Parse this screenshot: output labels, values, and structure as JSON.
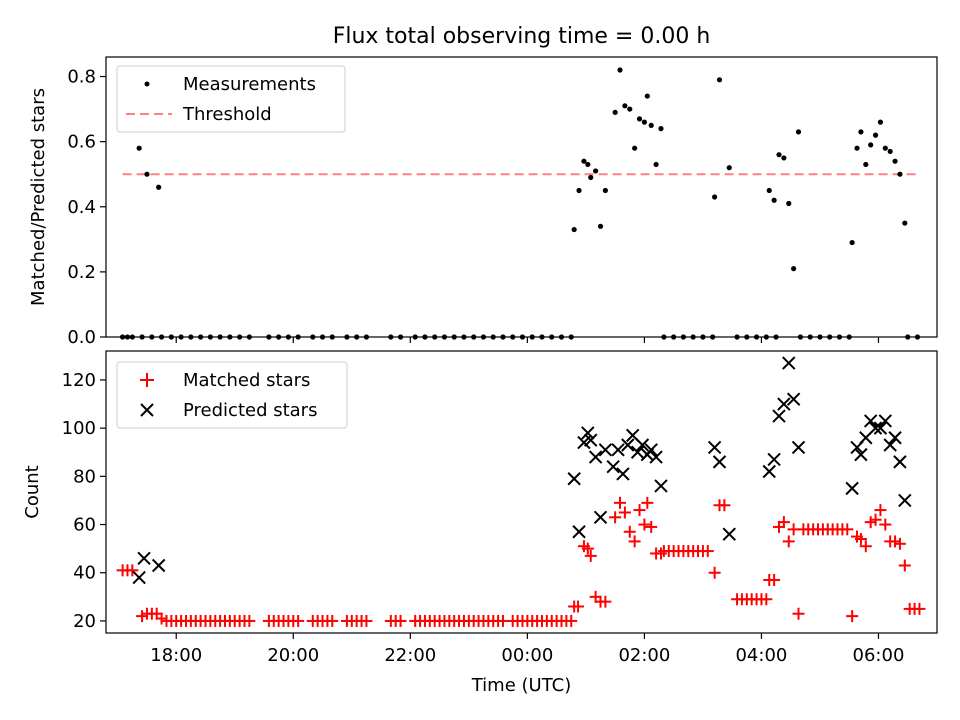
{
  "chart_data": [
    {
      "type": "scatter",
      "title": "Flux total observing time = 0.00 h",
      "xlabel": "",
      "ylabel": "Matched/Predicted stars",
      "xlim": [
        "16:48",
        "07:00"
      ],
      "ylim": [
        0,
        0.86
      ],
      "yticks": [
        0.0,
        0.2,
        0.4,
        0.6,
        0.8
      ],
      "ytick_labels": [
        "0.0",
        "0.2",
        "0.4",
        "0.6",
        "0.8"
      ],
      "legend": {
        "placement": "top-left"
      },
      "series": [
        {
          "name": "Measurements",
          "marker": "dot",
          "color": "#000000",
          "x": [
            "17:05",
            "17:10",
            "17:15",
            "17:25",
            "17:35",
            "17:45",
            "17:55",
            "18:05",
            "18:15",
            "18:25",
            "18:35",
            "18:45",
            "18:55",
            "19:05",
            "19:15",
            "19:35",
            "19:45",
            "19:55",
            "20:05",
            "20:20",
            "20:30",
            "20:40",
            "20:55",
            "21:05",
            "21:15",
            "21:40",
            "21:50",
            "22:05",
            "22:15",
            "22:25",
            "22:35",
            "22:45",
            "22:55",
            "23:05",
            "23:15",
            "23:25",
            "23:35",
            "23:45",
            "23:55",
            "00:05",
            "00:15",
            "00:25",
            "00:35",
            "00:45",
            "02:20",
            "02:30",
            "02:40",
            "02:50",
            "03:00",
            "03:10",
            "03:35",
            "03:45",
            "03:55",
            "04:05",
            "04:15",
            "04:40",
            "04:50",
            "05:00",
            "05:10",
            "05:20",
            "05:30",
            "06:30",
            "06:40",
            "17:22",
            "17:30",
            "17:42",
            "00:48",
            "00:53",
            "00:58",
            "01:02",
            "01:05",
            "01:10",
            "01:15",
            "01:20",
            "01:30",
            "01:35",
            "01:40",
            "01:45",
            "01:50",
            "01:55",
            "02:00",
            "02:03",
            "02:07",
            "02:12",
            "02:17",
            "03:12",
            "03:17",
            "03:27",
            "04:08",
            "04:13",
            "04:18",
            "04:23",
            "04:28",
            "04:33",
            "04:38",
            "05:33",
            "05:38",
            "05:42",
            "05:47",
            "05:52",
            "05:57",
            "06:02",
            "06:07",
            "06:12",
            "06:17",
            "06:22",
            "06:27"
          ],
          "y": [
            0,
            0,
            0,
            0,
            0,
            0,
            0,
            0,
            0,
            0,
            0,
            0,
            0,
            0,
            0,
            0,
            0,
            0,
            0,
            0,
            0,
            0,
            0,
            0,
            0,
            0,
            0,
            0,
            0,
            0,
            0,
            0,
            0,
            0,
            0,
            0,
            0,
            0,
            0,
            0,
            0,
            0,
            0,
            0,
            0,
            0,
            0,
            0,
            0,
            0,
            0,
            0,
            0,
            0,
            0,
            0,
            0,
            0,
            0,
            0,
            0,
            0,
            0,
            0.58,
            0.5,
            0.46,
            0.33,
            0.45,
            0.54,
            0.53,
            0.49,
            0.51,
            0.34,
            0.45,
            0.69,
            0.82,
            0.71,
            0.7,
            0.58,
            0.67,
            0.66,
            0.74,
            0.65,
            0.53,
            0.64,
            0.43,
            0.79,
            0.52,
            0.45,
            0.42,
            0.56,
            0.55,
            0.41,
            0.21,
            0.63,
            0.29,
            0.58,
            0.63,
            0.53,
            0.59,
            0.62,
            0.66,
            0.58,
            0.57,
            0.54,
            0.5,
            0.35
          ]
        },
        {
          "name": "Threshold",
          "line_style": "dashed",
          "color": "#ff8080",
          "x": [
            "17:05",
            "06:40"
          ],
          "y": [
            0.5,
            0.5
          ]
        }
      ]
    },
    {
      "type": "scatter",
      "title": "",
      "xlabel": "Time (UTC)",
      "ylabel": "Count",
      "xlim": [
        "16:48",
        "07:00"
      ],
      "xticks": [
        "18:00",
        "20:00",
        "22:00",
        "00:00",
        "02:00",
        "04:00",
        "06:00"
      ],
      "ylim": [
        15,
        132
      ],
      "yticks": [
        20,
        40,
        60,
        80,
        100,
        120
      ],
      "ytick_labels": [
        "20",
        "40",
        "60",
        "80",
        "100",
        "120"
      ],
      "legend": {
        "placement": "top-left"
      },
      "series": [
        {
          "name": "Matched stars",
          "marker": "plus",
          "color": "#ff0000",
          "x": [
            "17:05",
            "17:10",
            "17:15",
            "17:25",
            "17:30",
            "17:35",
            "17:40",
            "17:45",
            "17:50",
            "17:55",
            "18:00",
            "18:05",
            "18:10",
            "18:15",
            "18:20",
            "18:25",
            "18:30",
            "18:35",
            "18:40",
            "18:45",
            "18:50",
            "18:55",
            "19:00",
            "19:05",
            "19:10",
            "19:15",
            "19:35",
            "19:40",
            "19:45",
            "19:50",
            "19:55",
            "20:00",
            "20:05",
            "20:20",
            "20:25",
            "20:30",
            "20:35",
            "20:40",
            "20:55",
            "21:00",
            "21:05",
            "21:10",
            "21:15",
            "21:40",
            "21:45",
            "21:50",
            "22:05",
            "22:10",
            "22:15",
            "22:20",
            "22:25",
            "22:30",
            "22:35",
            "22:40",
            "22:45",
            "22:50",
            "22:55",
            "23:00",
            "23:05",
            "23:10",
            "23:15",
            "23:20",
            "23:25",
            "23:30",
            "23:35",
            "23:45",
            "23:50",
            "23:55",
            "00:00",
            "00:05",
            "00:10",
            "00:15",
            "00:20",
            "00:25",
            "00:30",
            "00:35",
            "00:40",
            "00:45",
            "00:48",
            "00:52",
            "00:58",
            "01:02",
            "01:05",
            "01:10",
            "01:15",
            "01:20",
            "01:30",
            "01:35",
            "01:40",
            "01:45",
            "01:50",
            "01:55",
            "02:00",
            "02:03",
            "02:07",
            "02:12",
            "02:17",
            "02:20",
            "02:25",
            "02:30",
            "02:35",
            "02:40",
            "02:45",
            "02:50",
            "02:55",
            "03:00",
            "03:05",
            "03:12",
            "03:17",
            "03:22",
            "03:35",
            "03:40",
            "03:45",
            "03:50",
            "03:55",
            "04:00",
            "04:05",
            "04:08",
            "04:13",
            "04:18",
            "04:23",
            "04:28",
            "04:33",
            "04:38",
            "04:43",
            "04:48",
            "04:53",
            "04:58",
            "05:03",
            "05:08",
            "05:13",
            "05:18",
            "05:23",
            "05:28",
            "05:33",
            "05:38",
            "05:42",
            "05:47",
            "05:52",
            "05:57",
            "06:02",
            "06:07",
            "06:12",
            "06:17",
            "06:22",
            "06:27",
            "06:32",
            "06:37",
            "06:42"
          ],
          "y": [
            41,
            41,
            41,
            22,
            23,
            23,
            23,
            21,
            20,
            20,
            20,
            20,
            20,
            20,
            20,
            20,
            20,
            20,
            20,
            20,
            20,
            20,
            20,
            20,
            20,
            20,
            20,
            20,
            20,
            20,
            20,
            20,
            20,
            20,
            20,
            20,
            20,
            20,
            20,
            20,
            20,
            20,
            20,
            20,
            20,
            20,
            20,
            20,
            20,
            20,
            20,
            20,
            20,
            20,
            20,
            20,
            20,
            20,
            20,
            20,
            20,
            20,
            20,
            20,
            20,
            20,
            20,
            20,
            20,
            20,
            20,
            20,
            20,
            20,
            20,
            20,
            20,
            20,
            26,
            26,
            51,
            50,
            47,
            30,
            28,
            28,
            63,
            69,
            65,
            57,
            53,
            66,
            60,
            69,
            59,
            48,
            48,
            49,
            49,
            49,
            49,
            49,
            49,
            49,
            49,
            49,
            49,
            40,
            68,
            68,
            29,
            29,
            29,
            29,
            29,
            29,
            29,
            37,
            37,
            59,
            61,
            53,
            58,
            23,
            58,
            58,
            58,
            58,
            58,
            58,
            58,
            58,
            58,
            58,
            22,
            55,
            54,
            51,
            61,
            62,
            66,
            60,
            53,
            53,
            52,
            43,
            25,
            25,
            25
          ]
        },
        {
          "name": "Predicted stars",
          "marker": "x",
          "color": "#000000",
          "x": [
            "17:22",
            "17:27",
            "17:42",
            "00:48",
            "00:53",
            "00:58",
            "01:02",
            "01:05",
            "01:10",
            "01:15",
            "01:20",
            "01:28",
            "01:33",
            "01:38",
            "01:43",
            "01:48",
            "01:53",
            "01:58",
            "02:03",
            "02:07",
            "02:12",
            "02:17",
            "03:12",
            "03:17",
            "03:27",
            "04:08",
            "04:13",
            "04:18",
            "04:23",
            "04:28",
            "04:33",
            "04:38",
            "05:33",
            "05:38",
            "05:42",
            "05:47",
            "05:52",
            "05:57",
            "06:02",
            "06:07",
            "06:12",
            "06:17",
            "06:22",
            "06:27"
          ],
          "y": [
            38,
            46,
            43,
            79,
            57,
            94,
            98,
            95,
            88,
            63,
            91,
            84,
            91,
            81,
            93,
            97,
            90,
            93,
            89,
            91,
            88,
            76,
            92,
            86,
            56,
            82,
            87,
            105,
            110,
            127,
            112,
            92,
            75,
            92,
            89,
            96,
            103,
            100,
            100,
            103,
            93,
            96,
            86,
            70
          ]
        }
      ]
    }
  ]
}
